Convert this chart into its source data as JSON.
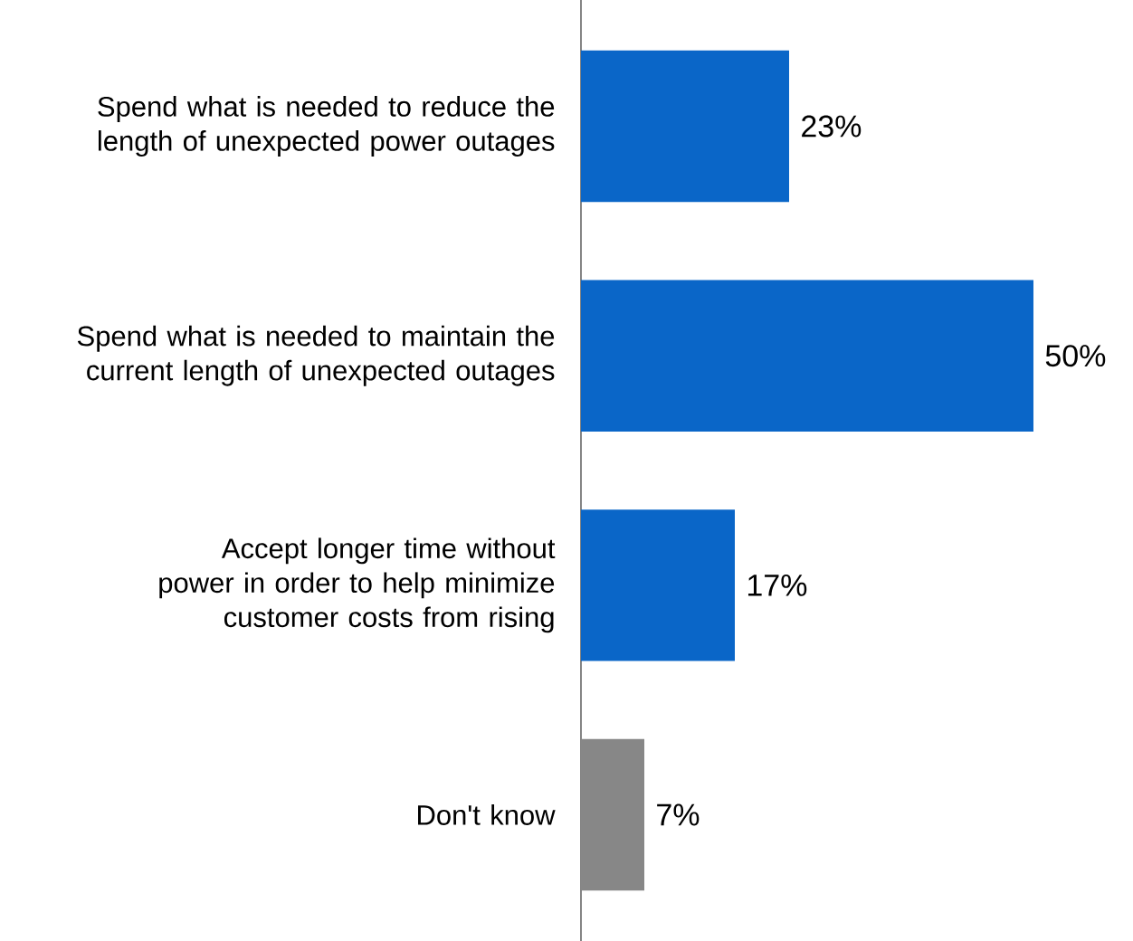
{
  "chart_data": {
    "type": "bar",
    "orientation": "horizontal",
    "categories": [
      "Spend what is needed to reduce the length of unexpected power outages",
      "Spend what is needed to maintain the current length of unexpected outages",
      "Accept longer time without power in order to help minimize customer costs from rising",
      "Don't know"
    ],
    "values": [
      23,
      50,
      17,
      7
    ],
    "colors": [
      "#0a66c8",
      "#0a66c8",
      "#0a66c8",
      "#878787"
    ],
    "value_labels": [
      "23%",
      "50%",
      "17%",
      "7%"
    ]
  }
}
